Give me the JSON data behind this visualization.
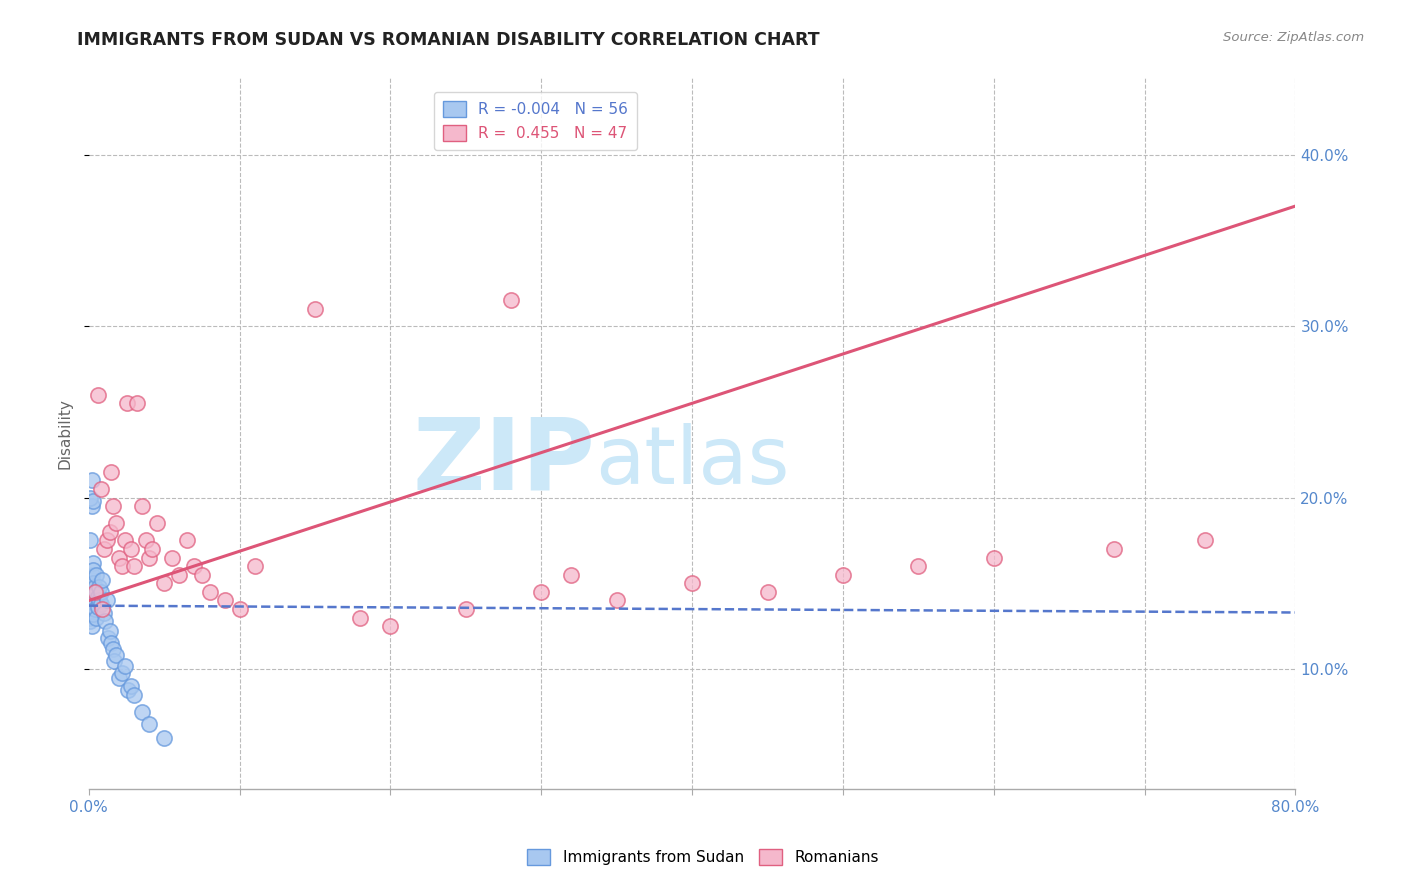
{
  "title": "IMMIGRANTS FROM SUDAN VS ROMANIAN DISABILITY CORRELATION CHART",
  "source_text": "Source: ZipAtlas.com",
  "ylabel": "Disability",
  "xlim": [
    0.0,
    0.8
  ],
  "ylim": [
    0.03,
    0.445
  ],
  "xticks": [
    0.0,
    0.1,
    0.2,
    0.3,
    0.4,
    0.5,
    0.6,
    0.7,
    0.8
  ],
  "yticks_right": [
    0.1,
    0.2,
    0.3,
    0.4
  ],
  "yticklabels_right": [
    "10.0%",
    "20.0%",
    "30.0%",
    "40.0%"
  ],
  "r_blue": -0.004,
  "n_blue": 56,
  "r_pink": 0.455,
  "n_pink": 47,
  "blue_color": "#a8c8f0",
  "pink_color": "#f5b8cc",
  "blue_edge_color": "#6699dd",
  "pink_edge_color": "#e06080",
  "blue_line_color": "#5577cc",
  "pink_line_color": "#dd5577",
  "grid_color": "#bbbbbb",
  "background_color": "#ffffff",
  "watermark_color": "#cce8f8",
  "legend_blue_label": "Immigrants from Sudan",
  "legend_pink_label": "Romanians",
  "blue_scatter_x": [
    0.001,
    0.001,
    0.001,
    0.001,
    0.001,
    0.001,
    0.001,
    0.001,
    0.002,
    0.002,
    0.002,
    0.002,
    0.002,
    0.002,
    0.003,
    0.003,
    0.003,
    0.003,
    0.003,
    0.004,
    0.004,
    0.004,
    0.004,
    0.005,
    0.005,
    0.005,
    0.006,
    0.006,
    0.007,
    0.007,
    0.008,
    0.008,
    0.009,
    0.01,
    0.011,
    0.012,
    0.013,
    0.014,
    0.015,
    0.016,
    0.017,
    0.018,
    0.02,
    0.022,
    0.024,
    0.026,
    0.028,
    0.03,
    0.035,
    0.04,
    0.05,
    0.001,
    0.002,
    0.001,
    0.002,
    0.003
  ],
  "blue_scatter_y": [
    0.13,
    0.14,
    0.138,
    0.142,
    0.135,
    0.145,
    0.133,
    0.128,
    0.148,
    0.152,
    0.143,
    0.137,
    0.155,
    0.125,
    0.162,
    0.158,
    0.145,
    0.132,
    0.15,
    0.14,
    0.148,
    0.138,
    0.135,
    0.145,
    0.13,
    0.155,
    0.142,
    0.136,
    0.148,
    0.14,
    0.138,
    0.145,
    0.152,
    0.133,
    0.128,
    0.14,
    0.118,
    0.122,
    0.115,
    0.112,
    0.105,
    0.108,
    0.095,
    0.098,
    0.102,
    0.088,
    0.09,
    0.085,
    0.075,
    0.068,
    0.06,
    0.175,
    0.195,
    0.2,
    0.21,
    0.198
  ],
  "pink_scatter_x": [
    0.004,
    0.006,
    0.008,
    0.009,
    0.01,
    0.012,
    0.014,
    0.015,
    0.016,
    0.018,
    0.02,
    0.022,
    0.024,
    0.025,
    0.028,
    0.03,
    0.032,
    0.035,
    0.038,
    0.04,
    0.042,
    0.045,
    0.05,
    0.055,
    0.06,
    0.065,
    0.07,
    0.075,
    0.08,
    0.09,
    0.1,
    0.11,
    0.15,
    0.18,
    0.2,
    0.25,
    0.28,
    0.3,
    0.32,
    0.35,
    0.4,
    0.45,
    0.5,
    0.55,
    0.6,
    0.68,
    0.74
  ],
  "pink_scatter_y": [
    0.145,
    0.26,
    0.205,
    0.135,
    0.17,
    0.175,
    0.18,
    0.215,
    0.195,
    0.185,
    0.165,
    0.16,
    0.175,
    0.255,
    0.17,
    0.16,
    0.255,
    0.195,
    0.175,
    0.165,
    0.17,
    0.185,
    0.15,
    0.165,
    0.155,
    0.175,
    0.16,
    0.155,
    0.145,
    0.14,
    0.135,
    0.16,
    0.31,
    0.13,
    0.125,
    0.135,
    0.315,
    0.145,
    0.155,
    0.14,
    0.15,
    0.145,
    0.155,
    0.16,
    0.165,
    0.17,
    0.175
  ],
  "blue_trend_x": [
    0.0,
    0.8
  ],
  "blue_trend_y": [
    0.137,
    0.133
  ],
  "pink_trend_x": [
    0.0,
    0.8
  ],
  "pink_trend_y": [
    0.14,
    0.37
  ]
}
